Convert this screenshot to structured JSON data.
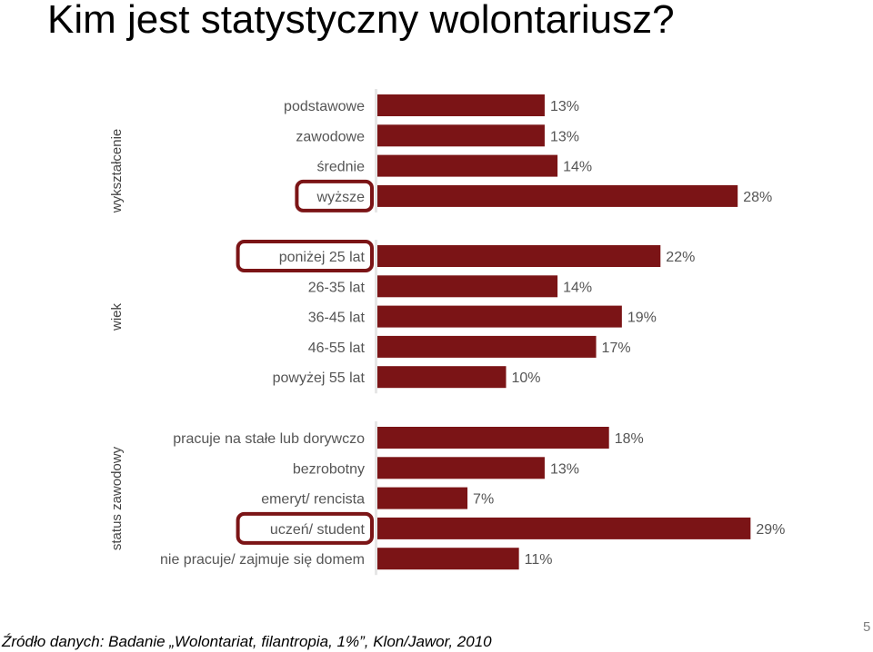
{
  "slide": {
    "title": "Kim jest statystyczny wolontariusz?",
    "source": "Źródło danych: Badanie „Wolontariat, filantropia, 1%”, Klon/Jawor, 2010",
    "page_number": "5"
  },
  "chart_data": {
    "type": "bar",
    "orientation": "horizontal",
    "unit": "%",
    "bar_color": "#7b1416",
    "highlight_color": "#7b1416",
    "groups": [
      {
        "label": "wykształcenie",
        "categories": [
          "podstawowe",
          "zawodowe",
          "średnie",
          "wyższe"
        ],
        "values": [
          13,
          13,
          14,
          28
        ],
        "value_labels": [
          "13%",
          "13%",
          "14%",
          "28%"
        ],
        "highlighted": [
          "wyższe"
        ]
      },
      {
        "label": "wiek",
        "categories": [
          "poniżej 25 lat",
          "26-35 lat",
          "36-45 lat",
          "46-55 lat",
          "powyżej 55 lat"
        ],
        "values": [
          22,
          14,
          19,
          17,
          10
        ],
        "value_labels": [
          "22%",
          "14%",
          "19%",
          "17%",
          "10%"
        ],
        "highlighted": [
          "poniżej 25 lat"
        ]
      },
      {
        "label": "status zawodowy",
        "categories": [
          "pracuje na stałe lub dorywczo",
          "bezrobotny",
          "emeryt/ rencista",
          "uczeń/ student",
          "nie pracuje/ zajmuje się domem"
        ],
        "values": [
          18,
          13,
          7,
          29,
          11
        ],
        "value_labels": [
          "18%",
          "13%",
          "7%",
          "29%",
          "11%"
        ],
        "highlighted": [
          "uczeń/ student"
        ]
      }
    ]
  }
}
